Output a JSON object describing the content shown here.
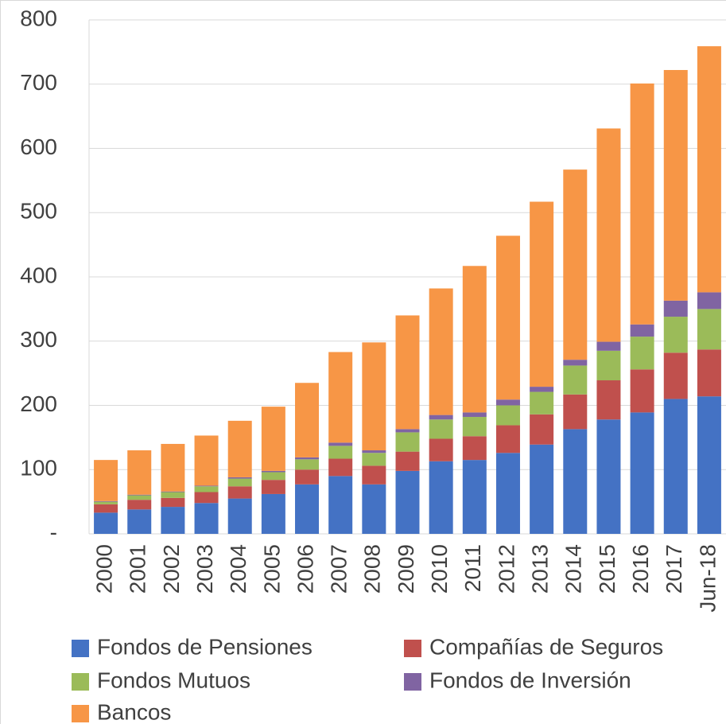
{
  "chart_data": {
    "type": "stacked_bar",
    "categories": [
      "2000",
      "2001",
      "2002",
      "2003",
      "2004",
      "2005",
      "2006",
      "2007",
      "2008",
      "2009",
      "2010",
      "2011",
      "2012",
      "2013",
      "2014",
      "2015",
      "2016",
      "2017",
      "Jun-18"
    ],
    "series": [
      {
        "name": "Fondos de Pensiones",
        "color": "#4472c4",
        "values": [
          33,
          38,
          42,
          48,
          55,
          62,
          77,
          90,
          77,
          98,
          113,
          115,
          126,
          139,
          163,
          178,
          189,
          210,
          214
        ]
      },
      {
        "name": "Compañías de Seguros",
        "color": "#c0504d",
        "values": [
          13,
          15,
          14,
          17,
          19,
          22,
          23,
          27,
          29,
          30,
          35,
          37,
          43,
          47,
          54,
          61,
          67,
          72,
          73
        ]
      },
      {
        "name": "Fondos Mutuos",
        "color": "#9bbb59",
        "values": [
          4,
          7,
          9,
          9,
          12,
          12,
          16,
          20,
          20,
          30,
          30,
          30,
          31,
          35,
          45,
          46,
          51,
          56,
          63
        ]
      },
      {
        "name": "Fondos de Inversión",
        "color": "#8064a2",
        "values": [
          1,
          1,
          1,
          1,
          2,
          2,
          3,
          5,
          4,
          5,
          7,
          7,
          9,
          8,
          9,
          14,
          19,
          25,
          26
        ]
      },
      {
        "name": "Bancos",
        "color": "#f79646",
        "values": [
          64,
          69,
          74,
          78,
          88,
          100,
          116,
          141,
          168,
          177,
          197,
          228,
          255,
          288,
          296,
          332,
          375,
          359,
          383
        ]
      }
    ],
    "ylim": [
      0,
      800
    ],
    "yticks": [
      {
        "value": 0,
        "label": "-"
      },
      100,
      200,
      300,
      400,
      500,
      600,
      700,
      800
    ],
    "grid": true,
    "legend": "bottom"
  }
}
